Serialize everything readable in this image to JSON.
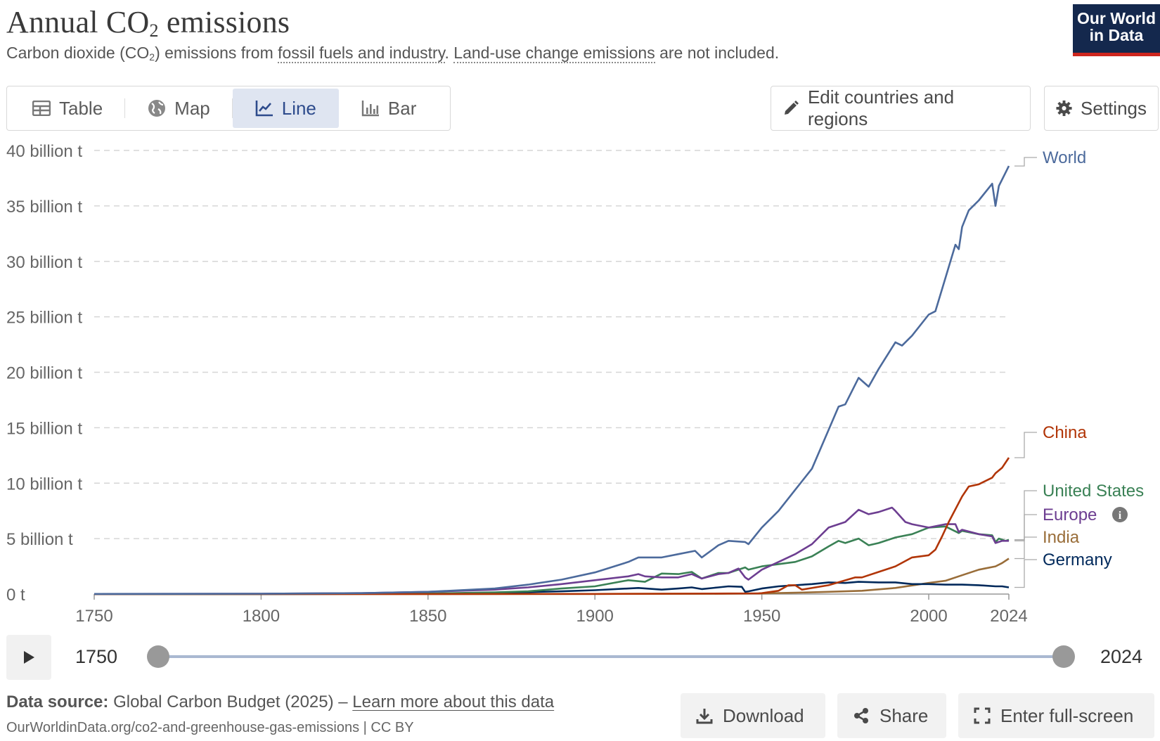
{
  "header": {
    "title_pre": "Annual CO",
    "title_sub": "2",
    "title_post": " emissions",
    "subtitle_pre": "Carbon dioxide (CO",
    "subtitle_sub": "2",
    "subtitle_mid": ") emissions from ",
    "subtitle_link1": "fossil fuels and industry",
    "subtitle_dot": ". ",
    "subtitle_link2": "Land-use change emissions",
    "subtitle_post": " are not included.",
    "logo_line1": "Our World",
    "logo_line2": "in Data"
  },
  "tabs": [
    {
      "label": "Table",
      "icon": "table-icon"
    },
    {
      "label": "Map",
      "icon": "globe-icon"
    },
    {
      "label": "Line",
      "icon": "line-chart-icon",
      "active": true
    },
    {
      "label": "Bar",
      "icon": "bar-chart-icon"
    }
  ],
  "toolbar": {
    "edit_label": "Edit countries and regions",
    "settings_label": "Settings"
  },
  "timeline": {
    "start": "1750",
    "end": "2024"
  },
  "footer": {
    "source_label": "Data source:",
    "source_text": "Global Carbon Budget (2025) – ",
    "source_link": "Learn more about this data",
    "url": "OurWorldinData.org/co2-and-greenhouse-gas-emissions | CC BY",
    "download_label": "Download",
    "share_label": "Share",
    "fullscreen_label": "Enter full-screen"
  },
  "colors": {
    "World": "#4c6a9c",
    "China": "#b13507",
    "United States": "#3a8155",
    "Europe": "#6d3e91",
    "India": "#996d39",
    "Germany": "#00295b"
  },
  "chart_data": {
    "type": "line",
    "title": "Annual CO₂ emissions",
    "xlim": [
      1750,
      2024
    ],
    "ylim": [
      0,
      40
    ],
    "y_ticks": [
      0,
      5,
      10,
      15,
      20,
      25,
      30,
      35,
      40
    ],
    "y_tick_labels": [
      "0 t",
      "5 billion t",
      "10 billion t",
      "15 billion t",
      "20 billion t",
      "25 billion t",
      "30 billion t",
      "35 billion t",
      "40 billion t"
    ],
    "x_ticks": [
      1750,
      1800,
      1850,
      1900,
      1950,
      2000,
      2024
    ],
    "grid": "horizontal dashed",
    "legend": "right, inline labels at line ends",
    "series": [
      {
        "name": "World",
        "x": [
          1750,
          1800,
          1830,
          1850,
          1870,
          1880,
          1890,
          1900,
          1910,
          1913,
          1920,
          1925,
          1930,
          1932,
          1937,
          1940,
          1945,
          1946,
          1950,
          1955,
          1960,
          1965,
          1970,
          1973,
          1975,
          1979,
          1982,
          1985,
          1990,
          1992,
          1995,
          2000,
          2002,
          2005,
          2008,
          2009,
          2010,
          2012,
          2015,
          2019,
          2020,
          2021,
          2023,
          2024
        ],
        "values": [
          0.01,
          0.03,
          0.08,
          0.2,
          0.5,
          0.85,
          1.3,
          1.95,
          2.9,
          3.3,
          3.3,
          3.6,
          3.9,
          3.3,
          4.4,
          4.8,
          4.7,
          4.5,
          6.0,
          7.5,
          9.4,
          11.3,
          14.8,
          16.9,
          17.1,
          19.5,
          18.7,
          20.3,
          22.7,
          22.4,
          23.3,
          25.2,
          25.5,
          28.5,
          31.5,
          31.1,
          33.1,
          34.6,
          35.5,
          37.0,
          35.0,
          36.8,
          38.0,
          38.6
        ]
      },
      {
        "name": "China",
        "x": [
          1750,
          1850,
          1900,
          1940,
          1949,
          1950,
          1955,
          1958,
          1960,
          1962,
          1970,
          1978,
          1980,
          1985,
          1990,
          1995,
          2000,
          2002,
          2004,
          2006,
          2010,
          2012,
          2015,
          2019,
          2020,
          2022,
          2024
        ],
        "values": [
          0,
          0.0,
          0.01,
          0.05,
          0.06,
          0.08,
          0.3,
          0.8,
          0.8,
          0.4,
          0.8,
          1.5,
          1.5,
          2.0,
          2.5,
          3.3,
          3.5,
          4.0,
          5.2,
          6.5,
          8.8,
          9.7,
          9.9,
          10.5,
          10.9,
          11.4,
          12.3
        ]
      },
      {
        "name": "United States",
        "x": [
          1750,
          1800,
          1850,
          1870,
          1880,
          1890,
          1900,
          1910,
          1915,
          1920,
          1925,
          1929,
          1932,
          1937,
          1940,
          1945,
          1946,
          1950,
          1955,
          1960,
          1965,
          1970,
          1973,
          1975,
          1979,
          1982,
          1985,
          1990,
          1995,
          2000,
          2005,
          2009,
          2010,
          2015,
          2019,
          2020,
          2021,
          2023,
          2024
        ],
        "values": [
          0,
          0.0,
          0.05,
          0.15,
          0.25,
          0.5,
          0.7,
          1.25,
          1.1,
          1.85,
          1.8,
          2.0,
          1.4,
          1.9,
          1.9,
          2.4,
          2.2,
          2.5,
          2.7,
          2.9,
          3.4,
          4.3,
          4.8,
          4.6,
          5.0,
          4.4,
          4.6,
          5.1,
          5.4,
          6.0,
          6.1,
          5.5,
          5.7,
          5.4,
          5.3,
          4.7,
          5.0,
          4.8,
          4.9
        ]
      },
      {
        "name": "Europe",
        "x": [
          1750,
          1800,
          1830,
          1850,
          1870,
          1880,
          1890,
          1900,
          1910,
          1913,
          1915,
          1920,
          1925,
          1929,
          1932,
          1937,
          1940,
          1943,
          1945,
          1946,
          1950,
          1955,
          1960,
          1965,
          1970,
          1975,
          1979,
          1982,
          1985,
          1989,
          1990,
          1993,
          1995,
          2000,
          2005,
          2008,
          2009,
          2010,
          2015,
          2019,
          2020,
          2022,
          2024
        ],
        "values": [
          0.01,
          0.03,
          0.08,
          0.2,
          0.4,
          0.6,
          0.9,
          1.25,
          1.6,
          1.8,
          1.6,
          1.5,
          1.5,
          1.8,
          1.4,
          1.8,
          1.9,
          2.3,
          1.5,
          1.3,
          2.2,
          2.9,
          3.6,
          4.5,
          6.0,
          6.5,
          7.6,
          7.2,
          7.4,
          7.8,
          7.5,
          6.5,
          6.3,
          6.0,
          6.3,
          6.3,
          5.6,
          5.8,
          5.4,
          5.2,
          4.6,
          4.8,
          4.8
        ]
      },
      {
        "name": "India",
        "x": [
          1750,
          1850,
          1900,
          1940,
          1950,
          1960,
          1970,
          1980,
          1990,
          2000,
          2005,
          2010,
          2015,
          2020,
          2022,
          2024
        ],
        "values": [
          0,
          0.0,
          0.01,
          0.03,
          0.06,
          0.12,
          0.2,
          0.3,
          0.55,
          1.0,
          1.2,
          1.7,
          2.2,
          2.5,
          2.8,
          3.2
        ]
      },
      {
        "name": "Germany",
        "x": [
          1750,
          1800,
          1850,
          1870,
          1890,
          1900,
          1913,
          1920,
          1925,
          1929,
          1932,
          1937,
          1940,
          1944,
          1945,
          1946,
          1950,
          1955,
          1960,
          1965,
          1970,
          1975,
          1979,
          1985,
          1990,
          1995,
          2000,
          2005,
          2010,
          2015,
          2020,
          2022,
          2024
        ],
        "values": [
          0,
          0.0,
          0.03,
          0.1,
          0.25,
          0.35,
          0.55,
          0.4,
          0.5,
          0.6,
          0.45,
          0.6,
          0.7,
          0.65,
          0.2,
          0.25,
          0.5,
          0.7,
          0.8,
          0.9,
          1.05,
          1.0,
          1.1,
          1.05,
          1.05,
          0.9,
          0.9,
          0.85,
          0.85,
          0.8,
          0.7,
          0.7,
          0.6
        ]
      }
    ]
  }
}
